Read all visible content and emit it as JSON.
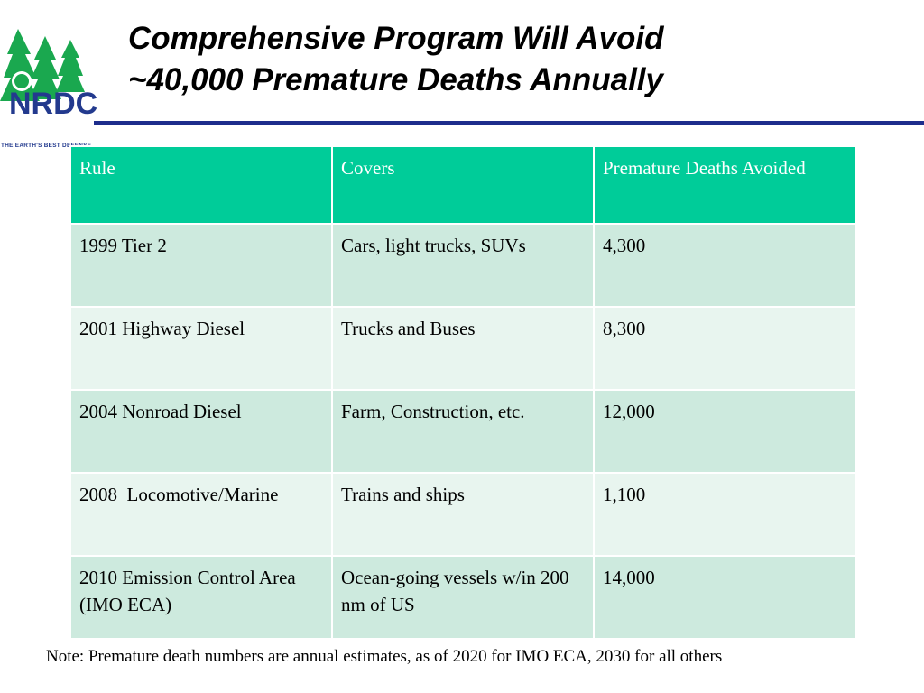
{
  "logo": {
    "text": "NRDC",
    "tagline": "THE EARTH'S BEST DEFENSE",
    "colors": {
      "green": "#1aa84f",
      "blue": "#233a8e"
    }
  },
  "slide": {
    "title_line1": "Comprehensive Program Will Avoid",
    "title_line2": "~40,000 Premature Deaths Annually"
  },
  "table": {
    "headers": [
      "Rule",
      "Covers",
      "Premature Deaths Avoided"
    ],
    "rows": [
      {
        "rule": "1999 Tier 2",
        "covers": "Cars, light trucks, SUVs",
        "deaths": "4,300"
      },
      {
        "rule": "2001 Highway Diesel",
        "covers": "Trucks and Buses",
        "deaths": "8,300"
      },
      {
        "rule": "2004 Nonroad Diesel",
        "covers": "Farm, Construction, etc.",
        "deaths": "12,000"
      },
      {
        "rule": "2008  Locomotive/Marine",
        "covers": "Trains and ships",
        "deaths": "1,100"
      },
      {
        "rule": "2010 Emission Control Area (IMO ECA)",
        "covers": "Ocean-going vessels w/in 200 nm of US",
        "deaths": "14,000"
      }
    ],
    "colors": {
      "header": "#00cc99",
      "row_dark": "#cdeade",
      "row_light": "#e8f5ef"
    }
  },
  "note": "Note:  Premature death numbers are annual estimates, as of 2020 for IMO ECA, 2030 for all others"
}
